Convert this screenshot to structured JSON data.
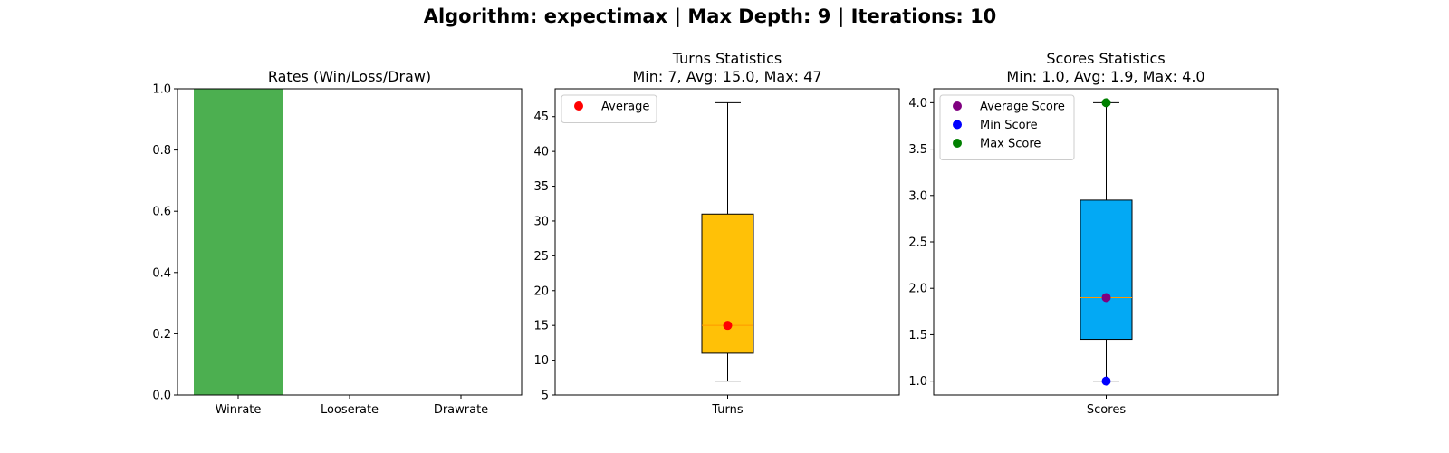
{
  "suptitle": "Algorithm: expectimax | Max Depth: 9 | Iterations: 10",
  "colors": {
    "win_bar": "#4caf50",
    "turns_box": "#ffc107",
    "scores_box": "#03a9f4",
    "median_line": "#ff9800",
    "avg_turns_marker": "#ff0000",
    "avg_score_marker": "#800080",
    "min_score_marker": "#0000ff",
    "max_score_marker": "#008000"
  },
  "chart_data": [
    {
      "type": "bar",
      "title": "Rates (Win/Loss/Draw)",
      "categories": [
        "Winrate",
        "Looserate",
        "Drawrate"
      ],
      "values": [
        1.0,
        0.0,
        0.0
      ],
      "ylim": [
        0,
        1
      ],
      "yticks": [
        "0.0",
        "0.2",
        "0.4",
        "0.6",
        "0.8",
        "1.0"
      ],
      "grid": false
    },
    {
      "type": "box",
      "title": "Turns Statistics",
      "subtitle": "Min: 7, Avg: 15.0, Max: 47",
      "category": "Turns",
      "min": 7,
      "q1": 11,
      "median": 15,
      "q3": 31,
      "max": 47,
      "average": 15.0,
      "ylim": [
        5,
        49
      ],
      "yticks": [
        "5",
        "10",
        "15",
        "20",
        "25",
        "30",
        "35",
        "40",
        "45"
      ],
      "legend": [
        {
          "label": "Average",
          "color": "#ff0000"
        }
      ],
      "legend_position": "top-left",
      "grid": false
    },
    {
      "type": "box",
      "title": "Scores Statistics",
      "subtitle": "Min: 1.0, Avg: 1.9, Max: 4.0",
      "category": "Scores",
      "min": 1.0,
      "q1": 1.45,
      "median": 1.9,
      "q3": 2.95,
      "max": 4.0,
      "average": 1.9,
      "min_marker": 1.0,
      "max_marker": 4.0,
      "ylim": [
        0.85,
        4.15
      ],
      "yticks": [
        "1.0",
        "1.5",
        "2.0",
        "2.5",
        "3.0",
        "3.5",
        "4.0"
      ],
      "legend": [
        {
          "label": "Average Score",
          "color": "#800080"
        },
        {
          "label": "Min Score",
          "color": "#0000ff"
        },
        {
          "label": "Max Score",
          "color": "#008000"
        }
      ],
      "legend_position": "top-left",
      "grid": false
    }
  ]
}
